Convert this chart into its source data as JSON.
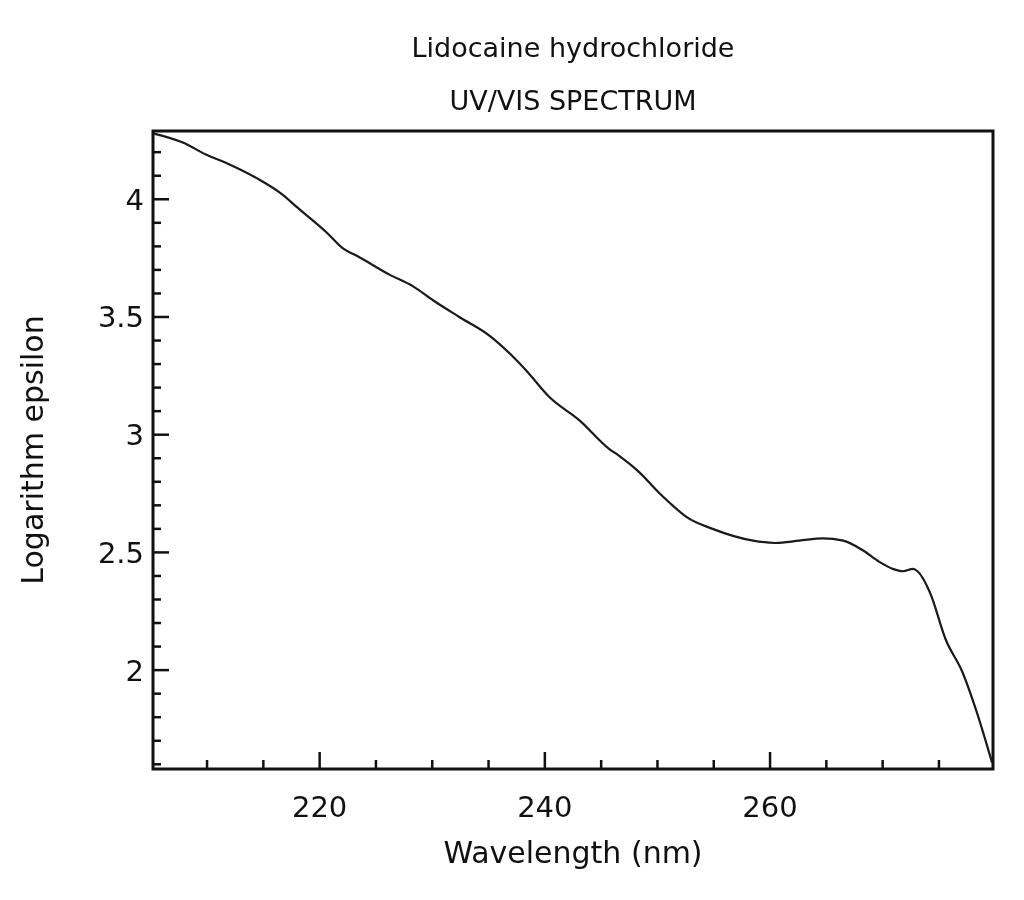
{
  "chart_data": {
    "type": "line",
    "title": "Lidocaine hydrochloride",
    "subtitle": "UV/VIS SPECTRUM",
    "xlabel": "Wavelength (nm)",
    "ylabel": "Logarithm epsilon",
    "x": [
      205.2,
      207.9,
      209.9,
      211.9,
      214.4,
      216.7,
      217.9,
      220.6,
      222.1,
      223.3,
      226.2,
      228.3,
      230.1,
      232.4,
      235.1,
      237.2,
      238.4,
      240.4,
      243.1,
      245.7,
      246.6,
      248.4,
      250.2,
      251.1,
      252.6,
      254.9,
      258.5,
      260.5,
      262.6,
      264.7,
      266.5,
      268.2,
      269.7,
      270.9,
      271.8,
      272.7,
      273.1,
      274.2,
      275.6,
      277.1,
      278.3,
      279.7
    ],
    "values": [
      4.28,
      4.24,
      4.19,
      4.15,
      4.09,
      4.02,
      3.97,
      3.86,
      3.79,
      3.76,
      3.68,
      3.63,
      3.57,
      3.5,
      3.42,
      3.33,
      3.27,
      3.16,
      3.06,
      2.94,
      2.91,
      2.84,
      2.75,
      2.71,
      2.65,
      2.6,
      2.55,
      2.54,
      2.55,
      2.56,
      2.55,
      2.51,
      2.46,
      2.43,
      2.42,
      2.43,
      2.42,
      2.33,
      2.13,
      1.99,
      1.83,
      1.61
    ],
    "color": "#1a1a1a",
    "xlim": [
      205.2,
      279.8
    ],
    "xticks": [
      {
        "value": 210,
        "label": null
      },
      {
        "value": 215,
        "label": null
      },
      220,
      {
        "value": 225,
        "label": null
      },
      {
        "value": 230,
        "label": null
      },
      {
        "value": 235,
        "label": null
      },
      240,
      {
        "value": 245,
        "label": null
      },
      {
        "value": 250,
        "label": null
      },
      {
        "value": 255,
        "label": null
      },
      260,
      {
        "value": 265,
        "label": null
      },
      {
        "value": 270,
        "label": null
      },
      {
        "value": 275,
        "label": null
      }
    ],
    "ylim": [
      1.58,
      4.29
    ],
    "yticks": [
      {
        "value": 1.6,
        "label": null
      },
      {
        "value": 1.7,
        "label": null
      },
      {
        "value": 1.8,
        "label": null
      },
      {
        "value": 1.9,
        "label": null
      },
      2,
      {
        "value": 2.1,
        "label": null
      },
      {
        "value": 2.2,
        "label": null
      },
      {
        "value": 2.3,
        "label": null
      },
      {
        "value": 2.4,
        "label": null
      },
      2.5,
      {
        "value": 2.6,
        "label": null
      },
      {
        "value": 2.7,
        "label": null
      },
      {
        "value": 2.8,
        "label": null
      },
      {
        "value": 2.9,
        "label": null
      },
      3,
      {
        "value": 3.1,
        "label": null
      },
      {
        "value": 3.2,
        "label": null
      },
      {
        "value": 3.3,
        "label": null
      },
      {
        "value": 3.4,
        "label": null
      },
      3.5,
      {
        "value": 3.6,
        "label": null
      },
      {
        "value": 3.7,
        "label": null
      },
      {
        "value": 3.8,
        "label": null
      },
      {
        "value": 3.9,
        "label": null
      },
      4,
      {
        "value": 4.1,
        "label": null
      },
      {
        "value": 4.2,
        "label": null
      }
    ]
  }
}
